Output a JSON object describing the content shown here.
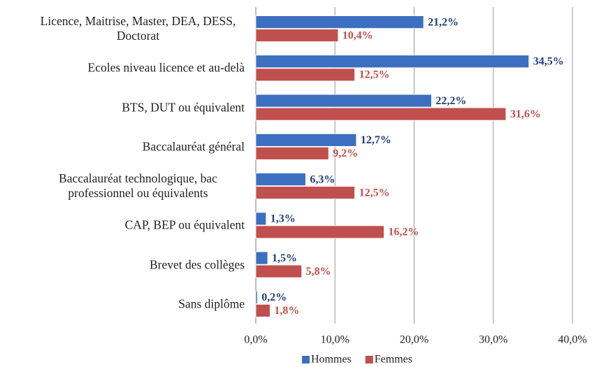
{
  "chart_data": {
    "type": "bar",
    "orientation": "horizontal",
    "categories": [
      "Licence, Maitrise, Master, DEA, DESS, Doctorat",
      "Ecoles niveau licence et au-delà",
      "BTS, DUT ou équivalent",
      "Baccalauréat général",
      "Baccalauréat technologique, bac professionnel ou équivalents",
      "CAP, BEP ou équivalent",
      "Brevet des collèges",
      "Sans diplôme"
    ],
    "series": [
      {
        "name": "Hommes",
        "color": "#3d6fc1",
        "label_color": "#1f3f73",
        "values": [
          21.2,
          34.5,
          22.2,
          12.7,
          6.3,
          1.3,
          1.5,
          0.2
        ],
        "value_labels": [
          "21,2%",
          "34,5%",
          "22,2%",
          "12,7%",
          "6,3%",
          "1,3%",
          "1,5%",
          "0,2%"
        ]
      },
      {
        "name": "Femmes",
        "color": "#c0504d",
        "label_color": "#c0504d",
        "values": [
          10.4,
          12.5,
          31.6,
          9.2,
          12.5,
          16.2,
          5.8,
          1.8
        ],
        "value_labels": [
          "10,4%",
          "12,5%",
          "31,6%",
          "9,2%",
          "12,5%",
          "16,2%",
          "5,8%",
          "1,8%"
        ]
      }
    ],
    "xlim": [
      0,
      40
    ],
    "xticks": [
      {
        "value": 0,
        "label": "0,0%"
      },
      {
        "value": 10,
        "label": "10,0%"
      },
      {
        "value": 20,
        "label": "20,0%"
      },
      {
        "value": 30,
        "label": "30,0%"
      },
      {
        "value": 40,
        "label": "40,0%"
      }
    ],
    "grid": true,
    "legend": "bottom"
  }
}
